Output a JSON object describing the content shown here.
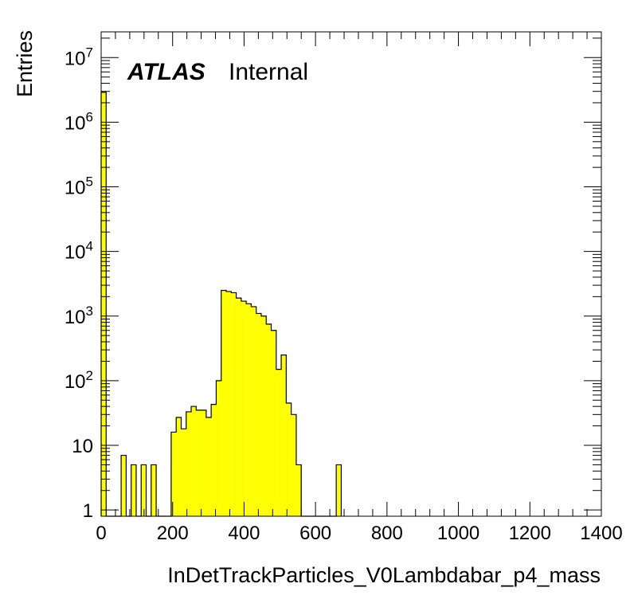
{
  "chart_data": {
    "type": "bar",
    "title": "",
    "xlabel": "InDetTrackParticles_V0Lambdabar_p4_mass",
    "ylabel": "Entries",
    "log_y": true,
    "xlim": [
      0,
      1400
    ],
    "ylim": [
      0.8,
      25000000
    ],
    "x_ticks": [
      "0",
      "200",
      "400",
      "600",
      "800",
      "1000",
      "1200",
      "1400"
    ],
    "y_ticks": [
      {
        "base": "1",
        "exp": ""
      },
      {
        "base": "10",
        "exp": ""
      },
      {
        "base": "10",
        "exp": "2"
      },
      {
        "base": "10",
        "exp": "3"
      },
      {
        "base": "10",
        "exp": "4"
      },
      {
        "base": "10",
        "exp": "5"
      },
      {
        "base": "10",
        "exp": "6"
      },
      {
        "base": "10",
        "exp": "7"
      }
    ],
    "bin_width": 14,
    "bin_edges_start": 0,
    "values": [
      2900000,
      0,
      0,
      0,
      7,
      0,
      5,
      0,
      5,
      0,
      5,
      0,
      0,
      0,
      16,
      27,
      18,
      33,
      40,
      35,
      35,
      27,
      43,
      100,
      2500,
      2400,
      2300,
      1900,
      1700,
      1550,
      1400,
      1100,
      1000,
      750,
      600,
      150,
      250,
      45,
      30,
      5,
      0,
      0,
      0,
      0,
      0,
      0,
      0,
      5
    ],
    "fill_color": "#ffff00",
    "line_color": "#000000",
    "grid": false,
    "legend": "none"
  },
  "labels": {
    "atlas": "ATLAS",
    "internal": "Internal"
  }
}
